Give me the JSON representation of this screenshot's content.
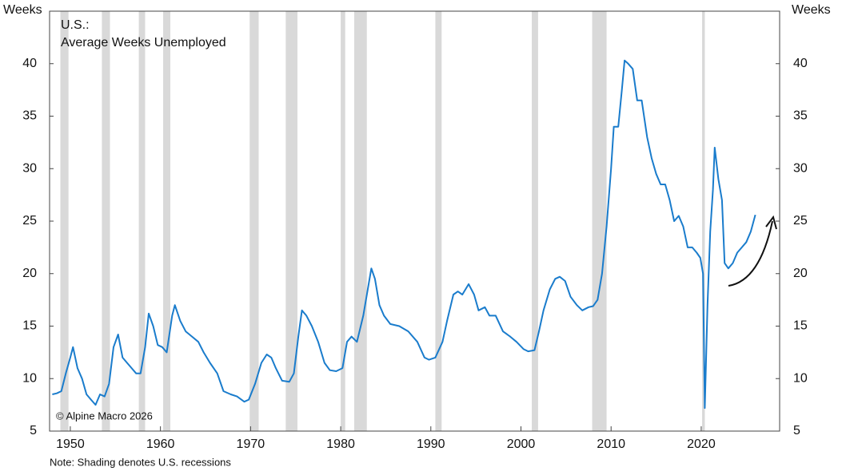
{
  "chart_data": {
    "type": "line",
    "title": "U.S.:",
    "subtitle": "Average Weeks Unemployed",
    "y_label": "Weeks",
    "credit": "© Alpine Macro 2026",
    "note": "Note: Shading denotes U.S. recessions",
    "xlim": [
      1947.7,
      2028.7
    ],
    "xticks": [
      1950,
      1960,
      1970,
      1980,
      1990,
      2000,
      2010,
      2020
    ],
    "ylim": [
      5,
      45
    ],
    "yticks": [
      5,
      10,
      15,
      20,
      25,
      30,
      35,
      40
    ],
    "recession_color": "#d9d9d9",
    "recessions": [
      [
        1948.9,
        1949.8
      ],
      [
        1953.5,
        1954.4
      ],
      [
        1957.6,
        1958.3
      ],
      [
        1960.3,
        1961.1
      ],
      [
        1969.9,
        1970.9
      ],
      [
        1973.9,
        1975.2
      ],
      [
        1980.0,
        1980.5
      ],
      [
        1981.5,
        1982.9
      ],
      [
        1990.5,
        1991.2
      ],
      [
        2001.2,
        2001.9
      ],
      [
        2007.9,
        2009.5
      ],
      [
        2020.1,
        2020.4
      ]
    ],
    "x": [
      1948.0,
      1948.5,
      1949.0,
      1949.5,
      1950.0,
      1950.3,
      1950.8,
      1951.3,
      1951.8,
      1952.3,
      1952.8,
      1953.3,
      1953.8,
      1954.3,
      1954.8,
      1955.3,
      1955.8,
      1956.3,
      1956.8,
      1957.3,
      1957.8,
      1958.3,
      1958.7,
      1959.2,
      1959.7,
      1960.2,
      1960.7,
      1961.3,
      1961.6,
      1962.2,
      1962.8,
      1963.5,
      1964.2,
      1964.8,
      1965.5,
      1966.3,
      1967.0,
      1967.8,
      1968.5,
      1969.3,
      1969.8,
      1970.5,
      1971.2,
      1971.8,
      1972.3,
      1972.8,
      1973.5,
      1974.3,
      1974.8,
      1975.3,
      1975.7,
      1976.2,
      1976.8,
      1977.5,
      1978.2,
      1978.8,
      1979.5,
      1980.2,
      1980.7,
      1981.2,
      1981.8,
      1982.5,
      1983.0,
      1983.4,
      1983.8,
      1984.3,
      1984.8,
      1985.5,
      1986.5,
      1987.5,
      1988.5,
      1989.3,
      1989.8,
      1990.5,
      1991.3,
      1991.8,
      1992.5,
      1993.0,
      1993.5,
      1994.2,
      1994.8,
      1995.3,
      1996.0,
      1996.5,
      1997.2,
      1998.0,
      1998.8,
      1999.5,
      2000.3,
      2000.8,
      2001.5,
      2002.0,
      2002.5,
      2003.2,
      2003.8,
      2004.3,
      2004.9,
      2005.5,
      2006.2,
      2006.8,
      2007.5,
      2008.0,
      2008.5,
      2009.0,
      2009.5,
      2010.0,
      2010.3,
      2010.8,
      2011.2,
      2011.5,
      2011.9,
      2012.4,
      2012.9,
      2013.4,
      2014.0,
      2014.5,
      2015.0,
      2015.5,
      2016.0,
      2016.5,
      2017.0,
      2017.5,
      2018.0,
      2018.5,
      2019.0,
      2019.5,
      2019.9,
      2020.2,
      2020.4,
      2020.7,
      2021.0,
      2021.3,
      2021.5,
      2021.9,
      2022.3,
      2022.6,
      2023.0,
      2023.5,
      2024.0,
      2024.5,
      2025.0,
      2025.5,
      2026.0
    ],
    "series": [
      {
        "name": "Average Weeks Unemployed",
        "color": "#1a7ccc",
        "values": [
          8.5,
          8.6,
          8.8,
          10.5,
          12,
          13,
          11,
          10,
          8.5,
          8,
          7.5,
          8.5,
          8.3,
          9.5,
          13,
          14.2,
          12,
          11.5,
          11,
          10.5,
          10.5,
          13,
          16.2,
          15,
          13.2,
          13,
          12.5,
          16,
          17,
          15.5,
          14.5,
          14,
          13.5,
          12.5,
          11.5,
          10.5,
          8.8,
          8.5,
          8.3,
          7.8,
          8,
          9.5,
          11.5,
          12.3,
          12,
          11,
          9.8,
          9.7,
          10.5,
          14,
          16.5,
          16,
          15,
          13.5,
          11.5,
          10.8,
          10.7,
          11,
          13.5,
          14,
          13.5,
          16,
          18.5,
          20.5,
          19.5,
          17,
          16,
          15.2,
          15,
          14.5,
          13.5,
          12,
          11.8,
          12,
          13.5,
          15.5,
          18,
          18.3,
          18,
          19,
          18,
          16.5,
          16.8,
          16,
          16,
          14.5,
          14,
          13.5,
          12.8,
          12.6,
          12.7,
          14.5,
          16.5,
          18.5,
          19.5,
          19.7,
          19.3,
          17.8,
          17,
          16.5,
          16.8,
          16.9,
          17.5,
          20,
          24.5,
          30,
          34,
          34,
          37.5,
          40.3,
          40,
          39.5,
          36.5,
          36.5,
          33,
          31,
          29.5,
          28.5,
          28.5,
          27,
          25,
          25.5,
          24.5,
          22.5,
          22.5,
          22,
          21.5,
          20,
          7.2,
          17,
          24,
          28,
          32,
          29,
          27,
          21,
          20.5,
          21,
          22,
          22.5,
          23,
          24,
          25.6
        ]
      }
    ]
  }
}
